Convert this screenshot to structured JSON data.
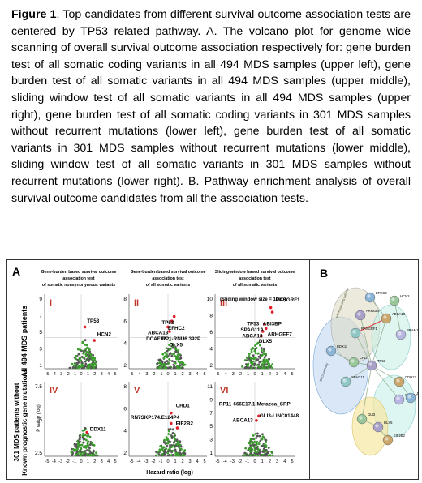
{
  "caption": {
    "label": "Figure 1",
    "text": ". Top candidates from different survival outcome association tests are centered by TP53 related pathway. A. The volcano plot for genome wide scanning of overall survival outcome association respectively for: gene burden test of all somatic coding variants in all 494 MDS samples (upper left), gene burden test of all somatic variants in all 494 MDS samples (upper middle), sliding window test of all somatic variants in all 494 MDS samples (upper right), gene burden test of all somatic coding variants in 301 MDS samples without recurrent mutations (lower left), gene burden test of all somatic variants in 301 MDS samples without recurrent mutations (lower middle), sliding window test of all somatic variants in 301 MDS samples without recurrent mutations (lower right). B. Pathway enrichment analysis of overall survival outcome candidates from all the association tests."
  },
  "figure": {
    "panel_a_label": "A",
    "panel_b_label": "B",
    "row_labels": [
      "All 494 MDS patients",
      "301 MDS patients without Known prognostic gene mutations"
    ],
    "yaxis_label": "P value (log)",
    "xaxis_label": "Hazard ratio (log)",
    "x_ticks": [
      "-5",
      "-4",
      "-3",
      "-2",
      "-1",
      "0",
      "1",
      "2",
      "3",
      "4",
      "5"
    ],
    "column_titles": [
      [
        "Gene-burden based survival outcome",
        "association test",
        "of somatic nonsynonymous variants"
      ],
      [
        "Gene-burden based survival outcome",
        "association test",
        "of all somatic variants"
      ],
      [
        "Sliding-window based survival outcome",
        "association test",
        "of all somatic variants"
      ]
    ],
    "window_note": "(Sliding window size = 10kb)",
    "plots": [
      {
        "roman": "I",
        "yticks": [
          "9",
          "7",
          "5",
          "3",
          "1"
        ],
        "labels": [
          "TP53",
          "HCN2"
        ]
      },
      {
        "roman": "II",
        "yticks": [
          "8",
          "6",
          "4",
          "2"
        ],
        "labels": [
          "TP53",
          "EFHC2",
          "ABCA13",
          "DCAF12",
          "RP1-RNU6.392P",
          "DLX5"
        ]
      },
      {
        "roman": "III",
        "yticks": [
          "10",
          "8",
          "6",
          "4",
          "2"
        ],
        "labels": [
          "RASGRF1",
          "TP53",
          "ABI3BP",
          "SPAG11A",
          "ARHGEF7",
          "ABCA13",
          "DLX5"
        ]
      },
      {
        "roman": "IV",
        "yticks": [
          "7.5",
          "5",
          "2.5"
        ],
        "labels": [
          "DDX11"
        ]
      },
      {
        "roman": "V",
        "yticks": [
          "8",
          "6",
          "4",
          "2"
        ],
        "labels": [
          "CHD1",
          "RN7SKP174.E124P4",
          "EIF2B2"
        ]
      },
      {
        "roman": "VI",
        "yticks": [
          "11",
          "9",
          "7",
          "5",
          "3",
          "1"
        ],
        "labels": [
          "RP11-666E17.1-Metazoa_SRP",
          "ABCA13",
          "GLI3-LINC01448"
        ]
      }
    ],
    "network_nodes": [
      "EFHC2",
      "HCN2",
      "ARHGEF7",
      "ABCA13",
      "RASGRF1",
      "PRAM1",
      "DDX11",
      "CHD1",
      "TP53",
      "CDH13",
      "SPAG11",
      "CADM1",
      "JAK2",
      "GLI3",
      "DLX5",
      "EIF2B2"
    ],
    "network_group_labels": [
      "BRCA pathway",
      "MAPK signaling pathway"
    ]
  }
}
